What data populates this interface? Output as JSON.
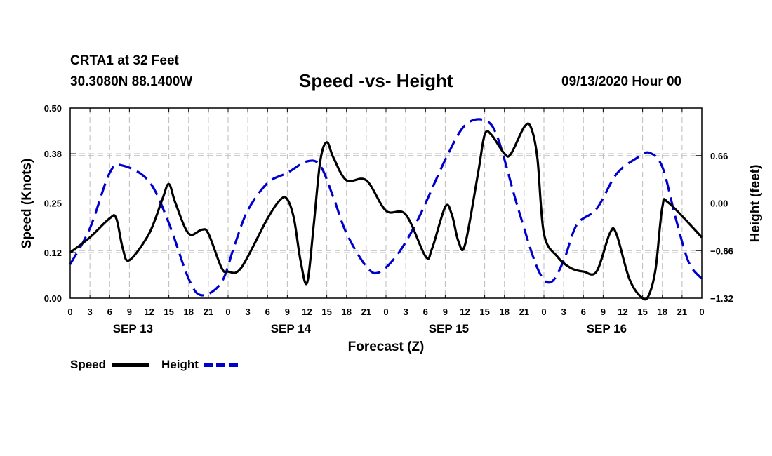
{
  "header": {
    "station": "CRTA1 at 32 Feet",
    "coords": "30.3080N 88.1400W",
    "title": "Speed -vs- Height",
    "stamp": "09/13/2020 Hour 00"
  },
  "colors": {
    "speed": "#000000",
    "height": "#0000cc",
    "grid": "#bbbbbb"
  },
  "chart_data": {
    "type": "line",
    "title": "Speed -vs- Height",
    "xlabel": "Forecast (Z)",
    "ylabel_left": "Speed (Knots)",
    "ylabel_right": "Height (feet)",
    "x_range_hours": [
      0,
      96
    ],
    "y_left_range": [
      0,
      0.5
    ],
    "y_right_range": [
      -1.32,
      1.32
    ],
    "y_left_ticks": [
      "0.00",
      "0.12",
      "0.25",
      "0.38",
      "0.50"
    ],
    "y_right_ticks": [
      "-1.32",
      "-0.66",
      "0.00",
      "0.66"
    ],
    "x_tick_labels": [
      "0",
      "3",
      "6",
      "9",
      "12",
      "15",
      "18",
      "21",
      "0",
      "3",
      "6",
      "9",
      "12",
      "15",
      "18",
      "21",
      "0",
      "3",
      "6",
      "9",
      "12",
      "15",
      "18",
      "21",
      "0",
      "3",
      "6",
      "9",
      "12",
      "15",
      "18",
      "21",
      "0"
    ],
    "day_labels": [
      {
        "label": "SEP 13",
        "hour": 9
      },
      {
        "label": "SEP 14",
        "hour": 33
      },
      {
        "label": "SEP 15",
        "hour": 57
      },
      {
        "label": "SEP 16",
        "hour": 81
      }
    ],
    "grid": true,
    "legend": [
      {
        "name": "Speed",
        "style": "solid"
      },
      {
        "name": "Height",
        "style": "dashed"
      }
    ],
    "series": [
      {
        "name": "Speed",
        "axis": "left",
        "points": [
          [
            0,
            0.12
          ],
          [
            3,
            0.16
          ],
          [
            6,
            0.21
          ],
          [
            7,
            0.21
          ],
          [
            8,
            0.13
          ],
          [
            9,
            0.1
          ],
          [
            12,
            0.17
          ],
          [
            14,
            0.26
          ],
          [
            15,
            0.3
          ],
          [
            16,
            0.25
          ],
          [
            18,
            0.17
          ],
          [
            20,
            0.18
          ],
          [
            21,
            0.17
          ],
          [
            23,
            0.08
          ],
          [
            24,
            0.07
          ],
          [
            26,
            0.08
          ],
          [
            30,
            0.21
          ],
          [
            32,
            0.26
          ],
          [
            33,
            0.26
          ],
          [
            34,
            0.21
          ],
          [
            35,
            0.1
          ],
          [
            36,
            0.04
          ],
          [
            37,
            0.19
          ],
          [
            38,
            0.36
          ],
          [
            39,
            0.41
          ],
          [
            40,
            0.37
          ],
          [
            42,
            0.31
          ],
          [
            45,
            0.31
          ],
          [
            48,
            0.23
          ],
          [
            51,
            0.22
          ],
          [
            54,
            0.11
          ],
          [
            55,
            0.13
          ],
          [
            57,
            0.24
          ],
          [
            58,
            0.22
          ],
          [
            59,
            0.15
          ],
          [
            60,
            0.14
          ],
          [
            62,
            0.33
          ],
          [
            63,
            0.43
          ],
          [
            64,
            0.43
          ],
          [
            66,
            0.38
          ],
          [
            67,
            0.38
          ],
          [
            69,
            0.45
          ],
          [
            70,
            0.45
          ],
          [
            71,
            0.37
          ],
          [
            72,
            0.17
          ],
          [
            74,
            0.11
          ],
          [
            76,
            0.08
          ],
          [
            78,
            0.07
          ],
          [
            80,
            0.07
          ],
          [
            82,
            0.17
          ],
          [
            83,
            0.17
          ],
          [
            85,
            0.05
          ],
          [
            87,
            0.0
          ],
          [
            88,
            0.01
          ],
          [
            89,
            0.08
          ],
          [
            90,
            0.24
          ],
          [
            91,
            0.25
          ],
          [
            96,
            0.16
          ]
        ]
      },
      {
        "name": "Height",
        "axis": "right",
        "points": [
          [
            0,
            -0.85
          ],
          [
            3,
            -0.35
          ],
          [
            6,
            0.42
          ],
          [
            8,
            0.52
          ],
          [
            12,
            0.3
          ],
          [
            15,
            -0.28
          ],
          [
            18,
            -1.05
          ],
          [
            20,
            -1.28
          ],
          [
            23,
            -1.1
          ],
          [
            25,
            -0.58
          ],
          [
            27,
            -0.1
          ],
          [
            30,
            0.28
          ],
          [
            33,
            0.42
          ],
          [
            36,
            0.58
          ],
          [
            38,
            0.52
          ],
          [
            40,
            0.08
          ],
          [
            42,
            -0.42
          ],
          [
            45,
            -0.88
          ],
          [
            47,
            -0.96
          ],
          [
            50,
            -0.68
          ],
          [
            53,
            -0.2
          ],
          [
            57,
            0.6
          ],
          [
            60,
            1.08
          ],
          [
            63,
            1.15
          ],
          [
            65,
            0.9
          ],
          [
            68,
            -0.05
          ],
          [
            71,
            -0.9
          ],
          [
            73,
            -1.1
          ],
          [
            75,
            -0.8
          ],
          [
            77,
            -0.3
          ],
          [
            80,
            -0.08
          ],
          [
            83,
            0.4
          ],
          [
            86,
            0.62
          ],
          [
            88,
            0.7
          ],
          [
            90,
            0.5
          ],
          [
            92,
            -0.2
          ],
          [
            94,
            -0.82
          ],
          [
            96,
            -1.05
          ]
        ]
      }
    ]
  }
}
